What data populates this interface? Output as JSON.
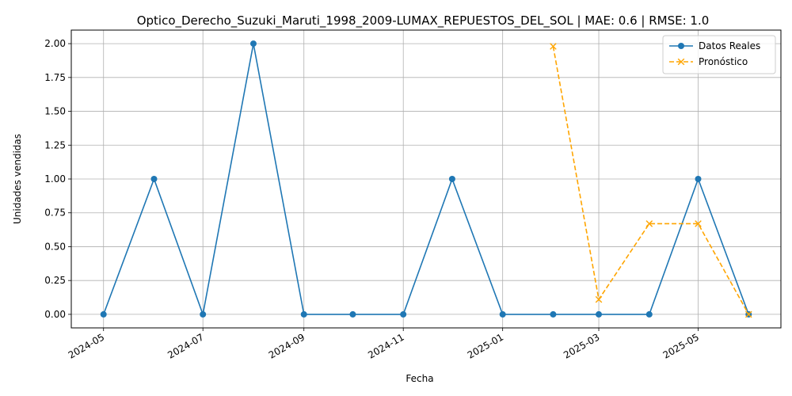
{
  "chart_data": {
    "type": "line",
    "title": "Optico_Derecho_Suzuki_Maruti_1998_2009-LUMAX_REPUESTOS_DEL_SOL | MAE: 0.6 | RMSE: 1.0",
    "xlabel": "Fecha",
    "ylabel": "Unidades vendidas",
    "ylim": [
      -0.1,
      2.1
    ],
    "y_ticks": [
      "0.00",
      "0.25",
      "0.50",
      "0.75",
      "1.00",
      "1.25",
      "1.50",
      "1.75",
      "2.00"
    ],
    "x_ticks": [
      "2024-05",
      "2024-07",
      "2024-09",
      "2024-11",
      "2025-01",
      "2025-03",
      "2025-05"
    ],
    "grid": true,
    "legend_position": "top-right",
    "series": [
      {
        "name": "Datos Reales",
        "color": "#1f77b4",
        "style": "solid",
        "marker": "circle",
        "points": [
          {
            "x": "2024-05-01",
            "y": 0
          },
          {
            "x": "2024-06-01",
            "y": 1
          },
          {
            "x": "2024-07-01",
            "y": 0
          },
          {
            "x": "2024-08-01",
            "y": 2
          },
          {
            "x": "2024-09-01",
            "y": 0
          },
          {
            "x": "2024-10-01",
            "y": 0
          },
          {
            "x": "2024-11-01",
            "y": 0
          },
          {
            "x": "2024-12-01",
            "y": 1
          },
          {
            "x": "2025-01-01",
            "y": 0
          },
          {
            "x": "2025-02-01",
            "y": 0
          },
          {
            "x": "2025-03-01",
            "y": 0
          },
          {
            "x": "2025-04-01",
            "y": 0
          },
          {
            "x": "2025-05-01",
            "y": 1
          },
          {
            "x": "2025-06-01",
            "y": 0
          }
        ]
      },
      {
        "name": "Pronóstico",
        "color": "#ffa500",
        "style": "dashed",
        "marker": "x",
        "points": [
          {
            "x": "2025-02-01",
            "y": 1.98
          },
          {
            "x": "2025-03-01",
            "y": 0.11
          },
          {
            "x": "2025-04-01",
            "y": 0.67
          },
          {
            "x": "2025-05-01",
            "y": 0.67
          },
          {
            "x": "2025-06-01",
            "y": 0.0
          }
        ]
      }
    ]
  }
}
